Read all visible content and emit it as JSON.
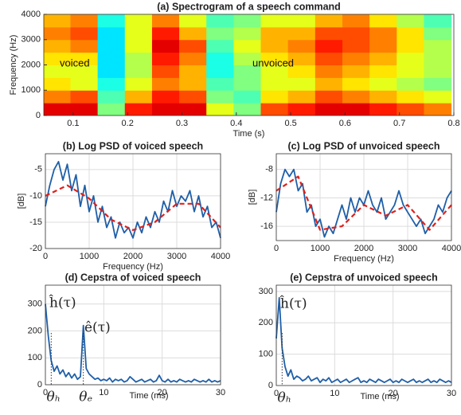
{
  "chart_data": [
    {
      "type": "heatmap",
      "title": "(a) Spectrogram of a speech command",
      "xlabel": "Time (s)",
      "ylabel": "Frequency (Hz)",
      "colormap": "jet",
      "xlim": [
        0.046,
        0.8
      ],
      "xticks": [
        0.1,
        0.2,
        0.3,
        0.4,
        0.5,
        0.6,
        0.7,
        0.8
      ],
      "ylim": [
        0,
        4000
      ],
      "yticks": [
        0,
        1000,
        2000,
        3000,
        4000
      ],
      "x": [
        0.07,
        0.12,
        0.17,
        0.22,
        0.27,
        0.32,
        0.37,
        0.42,
        0.47,
        0.52,
        0.57,
        0.62,
        0.67,
        0.72,
        0.77
      ],
      "y": [
        250,
        750,
        1250,
        1750,
        2250,
        2750,
        3250,
        3750
      ],
      "z": [
        [
          0.9,
          0.9,
          0.5,
          0.85,
          0.9,
          0.9,
          0.6,
          0.5,
          0.8,
          0.85,
          0.9,
          0.9,
          0.85,
          0.8,
          0.75
        ],
        [
          0.75,
          0.8,
          0.45,
          0.7,
          0.85,
          0.8,
          0.5,
          0.45,
          0.65,
          0.7,
          0.8,
          0.75,
          0.7,
          0.65,
          0.6
        ],
        [
          0.65,
          0.6,
          0.4,
          0.6,
          0.75,
          0.7,
          0.45,
          0.5,
          0.6,
          0.6,
          0.7,
          0.65,
          0.6,
          0.55,
          0.5
        ],
        [
          0.6,
          0.6,
          0.35,
          0.55,
          0.8,
          0.7,
          0.4,
          0.5,
          0.6,
          0.65,
          0.75,
          0.7,
          0.65,
          0.6,
          0.55
        ],
        [
          0.65,
          0.65,
          0.35,
          0.55,
          0.85,
          0.75,
          0.4,
          0.55,
          0.65,
          0.7,
          0.8,
          0.75,
          0.7,
          0.6,
          0.55
        ],
        [
          0.7,
          0.75,
          0.35,
          0.6,
          0.9,
          0.8,
          0.45,
          0.6,
          0.7,
          0.75,
          0.85,
          0.8,
          0.75,
          0.65,
          0.55
        ],
        [
          0.75,
          0.8,
          0.35,
          0.6,
          0.85,
          0.7,
          0.5,
          0.55,
          0.7,
          0.7,
          0.8,
          0.8,
          0.75,
          0.65,
          0.5
        ],
        [
          0.7,
          0.75,
          0.4,
          0.6,
          0.75,
          0.6,
          0.45,
          0.5,
          0.6,
          0.6,
          0.7,
          0.75,
          0.65,
          0.55,
          0.45
        ]
      ],
      "annotations": [
        "voiced",
        "unvoiced"
      ]
    },
    {
      "type": "line",
      "title": "(b) Log PSD of voiced speech",
      "xlabel": "Frequency (Hz)",
      "ylabel": "[dB]",
      "grid": true,
      "xlim": [
        0,
        4000
      ],
      "xticks": [
        0,
        1000,
        2000,
        3000,
        4000
      ],
      "ylim": [
        -20,
        -2
      ],
      "yticks": [
        -20,
        -15,
        -10,
        -5
      ],
      "series": [
        {
          "color": "#1f5fa8",
          "style": "solid",
          "x": [
            0,
            100,
            200,
            300,
            400,
            500,
            600,
            700,
            800,
            900,
            1000,
            1100,
            1200,
            1300,
            1400,
            1500,
            1600,
            1700,
            1800,
            1900,
            2000,
            2100,
            2200,
            2300,
            2400,
            2500,
            2600,
            2700,
            2800,
            2900,
            3000,
            3100,
            3200,
            3300,
            3400,
            3500,
            3600,
            3700,
            3800,
            3900,
            4000
          ],
          "values": [
            -12,
            -8,
            -5,
            -3.5,
            -7,
            -4,
            -9,
            -6,
            -12,
            -8,
            -13,
            -10,
            -15,
            -12,
            -16,
            -14,
            -18,
            -15,
            -17,
            -16,
            -18,
            -15,
            -17,
            -14,
            -16,
            -13,
            -15,
            -11,
            -13,
            -9,
            -12,
            -10,
            -11,
            -9,
            -13,
            -10,
            -14,
            -12,
            -16,
            -15,
            -18
          ]
        },
        {
          "color": "#e0201b",
          "style": "dashed",
          "x": [
            0,
            500,
            1000,
            1500,
            2000,
            2500,
            3000,
            3500,
            4000
          ],
          "values": [
            -10,
            -8,
            -10.5,
            -14.5,
            -16.5,
            -15,
            -11.5,
            -11.5,
            -16
          ]
        }
      ]
    },
    {
      "type": "line",
      "title": "(c) Log PSD of unvoiced speech",
      "xlabel": "Frequency (Hz)",
      "ylabel": "[dB]",
      "grid": true,
      "xlim": [
        0,
        4000
      ],
      "xticks": [
        0,
        1000,
        2000,
        3000,
        4000
      ],
      "ylim": [
        -18,
        -5.8
      ],
      "yticks": [
        -16,
        -12,
        -8
      ],
      "series": [
        {
          "color": "#1f5fa8",
          "style": "solid",
          "x": [
            0,
            100,
            200,
            300,
            400,
            500,
            600,
            700,
            800,
            900,
            1000,
            1100,
            1200,
            1300,
            1400,
            1500,
            1600,
            1700,
            1800,
            1900,
            2000,
            2100,
            2200,
            2300,
            2400,
            2500,
            2600,
            2700,
            2800,
            2900,
            3000,
            3100,
            3200,
            3300,
            3400,
            3500,
            3600,
            3700,
            3800,
            3900,
            4000
          ],
          "values": [
            -14,
            -10,
            -8,
            -9,
            -8,
            -11,
            -10,
            -14,
            -13,
            -16,
            -15,
            -17.5,
            -16,
            -17,
            -15,
            -13,
            -15,
            -12,
            -14,
            -12,
            -13,
            -11,
            -13,
            -14,
            -12,
            -15,
            -14,
            -13,
            -11,
            -13,
            -14,
            -15,
            -16,
            -15,
            -17,
            -16,
            -15,
            -13,
            -14,
            -12,
            -11
          ]
        },
        {
          "color": "#e0201b",
          "style": "dashed",
          "x": [
            0,
            500,
            1000,
            1500,
            2000,
            2500,
            3000,
            3500,
            4000
          ],
          "values": [
            -11,
            -9,
            -16.5,
            -16,
            -13,
            -14.5,
            -13,
            -16.5,
            -13
          ]
        }
      ]
    },
    {
      "type": "line",
      "title": "(d) Cepstra of voiced speech",
      "xlabel": "Time (ms)",
      "grid": true,
      "xlim": [
        0,
        30
      ],
      "xticks": [
        0,
        10,
        20,
        30
      ],
      "ylim": [
        0,
        370
      ],
      "yticks": [
        0,
        100,
        200,
        300
      ],
      "series": [
        {
          "color": "#1f5fa8",
          "style": "solid",
          "x": [
            0,
            0.5,
            1,
            1.5,
            2,
            2.5,
            3,
            3.5,
            4,
            4.5,
            5,
            5.5,
            6,
            6.5,
            7,
            7.5,
            8,
            8.5,
            9,
            9.5,
            10,
            10.5,
            11,
            11.5,
            12,
            12.5,
            13,
            13.5,
            14,
            14.5,
            15,
            15.5,
            16,
            16.5,
            17,
            17.5,
            18,
            18.5,
            19,
            19.5,
            20,
            20.5,
            21,
            21.5,
            22,
            22.5,
            23,
            23.5,
            24,
            24.5,
            25,
            25.5,
            26,
            26.5,
            27,
            27.5,
            28,
            28.5,
            29,
            29.5,
            30
          ],
          "values": [
            300,
            180,
            90,
            50,
            70,
            40,
            55,
            30,
            45,
            25,
            40,
            20,
            30,
            220,
            60,
            40,
            30,
            20,
            25,
            15,
            20,
            15,
            25,
            10,
            20,
            15,
            20,
            10,
            15,
            30,
            20,
            10,
            15,
            20,
            10,
            15,
            20,
            10,
            15,
            35,
            15,
            10,
            20,
            10,
            15,
            10,
            20,
            15,
            10,
            15,
            10,
            20,
            15,
            10,
            15,
            10,
            20,
            10,
            15,
            10,
            15
          ]
        }
      ],
      "markers": [
        {
          "label": "θₕ",
          "x": 1
        },
        {
          "label": "θₑ",
          "x": 6.5
        }
      ],
      "annotations": [
        "ĥ(τ)",
        "ê(τ)"
      ]
    },
    {
      "type": "line",
      "title": "(e) Cepstra of unvoiced speech",
      "xlabel": "Time (ms)",
      "grid": true,
      "xlim": [
        0,
        30
      ],
      "xticks": [
        0,
        10,
        20,
        30
      ],
      "ylim": [
        0,
        320
      ],
      "yticks": [
        0,
        100,
        200,
        300
      ],
      "series": [
        {
          "color": "#1f5fa8",
          "style": "solid",
          "x": [
            0,
            0.5,
            1,
            1.5,
            2,
            2.5,
            3,
            3.5,
            4,
            4.5,
            5,
            5.5,
            6,
            6.5,
            7,
            7.5,
            8,
            8.5,
            9,
            9.5,
            10,
            10.5,
            11,
            11.5,
            12,
            12.5,
            13,
            13.5,
            14,
            14.5,
            15,
            15.5,
            16,
            16.5,
            17,
            17.5,
            18,
            18.5,
            19,
            19.5,
            20,
            20.5,
            21,
            21.5,
            22,
            22.5,
            23,
            23.5,
            24,
            24.5,
            25,
            25.5,
            26,
            26.5,
            27,
            27.5,
            28,
            28.5,
            29,
            29.5,
            30
          ],
          "values": [
            150,
            280,
            120,
            60,
            30,
            50,
            20,
            30,
            25,
            15,
            20,
            30,
            15,
            20,
            25,
            10,
            20,
            15,
            25,
            10,
            15,
            20,
            10,
            15,
            20,
            10,
            15,
            20,
            25,
            10,
            15,
            10,
            20,
            15,
            10,
            20,
            15,
            10,
            15,
            20,
            10,
            15,
            10,
            20,
            15,
            10,
            15,
            20,
            10,
            15,
            10,
            15,
            20,
            10,
            15,
            10,
            20,
            15,
            10,
            15,
            10
          ]
        }
      ],
      "markers": [
        {
          "label": "θₕ",
          "x": 1
        }
      ],
      "annotations": [
        "ĥ(τ)"
      ]
    }
  ]
}
